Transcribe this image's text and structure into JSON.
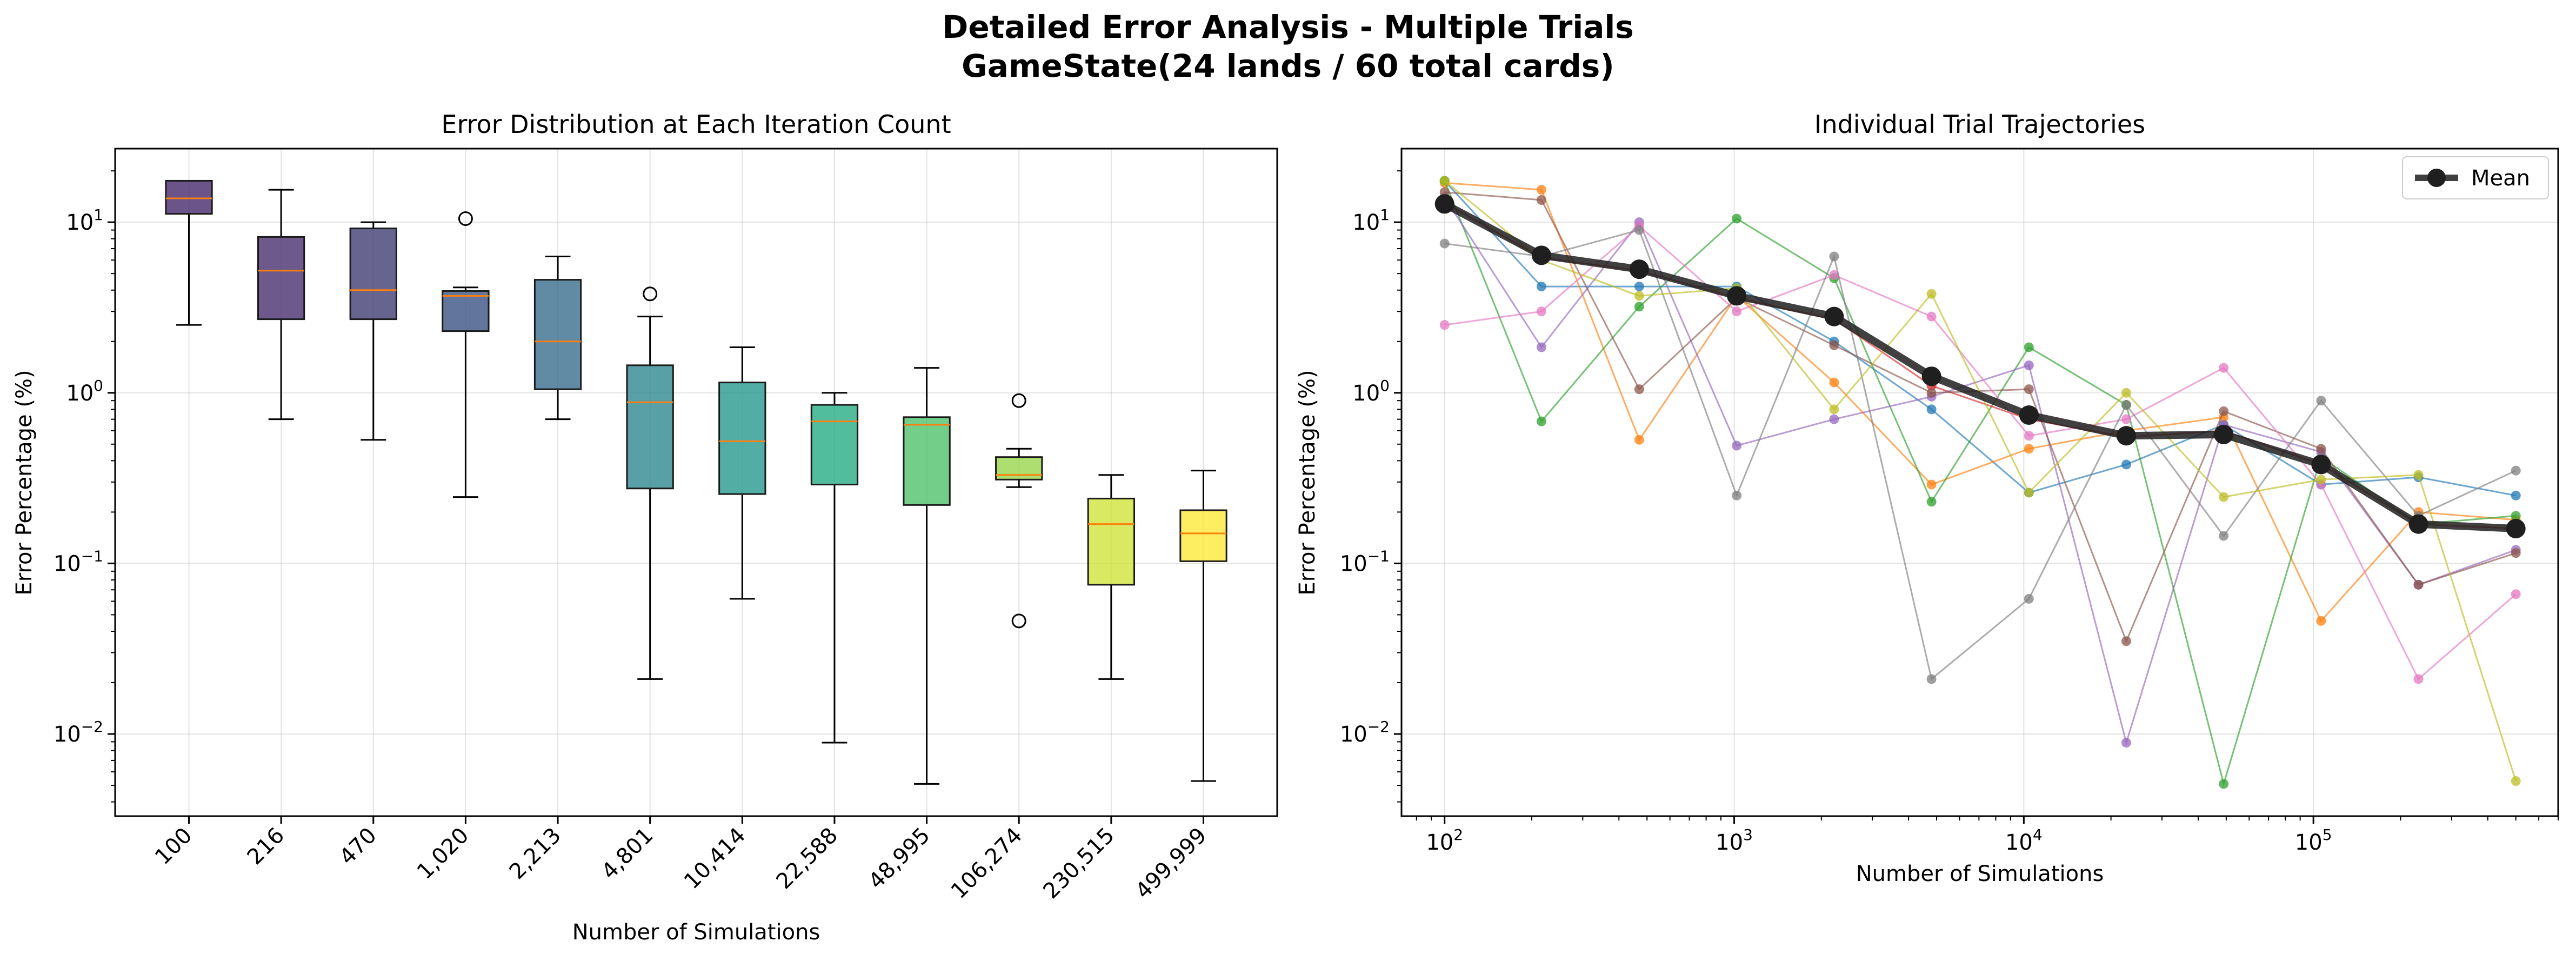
{
  "figure": {
    "title_line1": "Detailed Error Analysis - Multiple Trials",
    "title_line2": "GameState(24 lands / 60 total cards)"
  },
  "colors": {
    "mean": "#1f1f1f",
    "median": "#ff7f0e",
    "box_fills": [
      "#46296d",
      "#482f6f",
      "#413d73",
      "#3a5385",
      "#396d8e",
      "#2f8790",
      "#27988f",
      "#27ad83",
      "#4fc26a",
      "#98d64b",
      "#cfe33b",
      "#fde93a"
    ],
    "trial_colors": [
      "#1f77b4",
      "#ff7f0e",
      "#2ca02c",
      "#d62728",
      "#9467bd",
      "#8c564b",
      "#e377c2",
      "#7f7f7f",
      "#bcbd22",
      "#17becf"
    ]
  },
  "chart_data": [
    {
      "type": "box",
      "title": "Error Distribution at Each Iteration Count",
      "xlabel": "Number of Simulations",
      "ylabel": "Error Percentage (%)",
      "yscale": "log",
      "ylim": [
        0.0033,
        27
      ],
      "y_ticks": [
        {
          "value": 0.01,
          "base": "10",
          "exp": "−2"
        },
        {
          "value": 0.1,
          "base": "10",
          "exp": "−1"
        },
        {
          "value": 1,
          "base": "10",
          "exp": "0"
        },
        {
          "value": 10,
          "base": "10",
          "exp": "1"
        }
      ],
      "grid": true,
      "categories": [
        "100",
        "216",
        "470",
        "1,020",
        "2,213",
        "4,801",
        "10,414",
        "22,588",
        "48,995",
        "106,274",
        "230,515",
        "499,999"
      ],
      "boxes": [
        {
          "whisker_low": 2.5,
          "q1": 11.2,
          "median": 13.8,
          "q3": 17.5,
          "whisker_high": 17.5,
          "outliers": []
        },
        {
          "whisker_low": 0.7,
          "q1": 2.7,
          "median": 5.2,
          "q3": 8.2,
          "whisker_high": 15.5,
          "outliers": []
        },
        {
          "whisker_low": 0.53,
          "q1": 2.7,
          "median": 4.0,
          "q3": 9.2,
          "whisker_high": 10.0,
          "outliers": []
        },
        {
          "whisker_low": 0.245,
          "q1": 2.3,
          "median": 3.7,
          "q3": 3.95,
          "whisker_high": 4.15,
          "outliers": [
            10.5
          ]
        },
        {
          "whisker_low": 0.7,
          "q1": 1.05,
          "median": 2.0,
          "q3": 4.6,
          "whisker_high": 6.3,
          "outliers": []
        },
        {
          "whisker_low": 0.021,
          "q1": 0.275,
          "median": 0.88,
          "q3": 1.45,
          "whisker_high": 2.8,
          "outliers": [
            3.8
          ]
        },
        {
          "whisker_low": 0.062,
          "q1": 0.255,
          "median": 0.52,
          "q3": 1.15,
          "whisker_high": 1.85,
          "outliers": []
        },
        {
          "whisker_low": 0.0089,
          "q1": 0.29,
          "median": 0.68,
          "q3": 0.85,
          "whisker_high": 1.0,
          "outliers": []
        },
        {
          "whisker_low": 0.0051,
          "q1": 0.22,
          "median": 0.65,
          "q3": 0.72,
          "whisker_high": 1.4,
          "outliers": []
        },
        {
          "whisker_low": 0.28,
          "q1": 0.31,
          "median": 0.33,
          "q3": 0.42,
          "whisker_high": 0.47,
          "outliers": [
            0.9,
            0.046
          ]
        },
        {
          "whisker_low": 0.021,
          "q1": 0.075,
          "median": 0.17,
          "q3": 0.24,
          "whisker_high": 0.33,
          "outliers": []
        },
        {
          "whisker_low": 0.0053,
          "q1": 0.103,
          "median": 0.15,
          "q3": 0.205,
          "whisker_high": 0.35,
          "outliers": []
        }
      ]
    },
    {
      "type": "line",
      "title": "Individual Trial Trajectories",
      "xlabel": "Number of Simulations",
      "ylabel": "Error Percentage (%)",
      "xscale": "log",
      "yscale": "log",
      "xlim": [
        71,
        700000
      ],
      "ylim": [
        0.0033,
        27
      ],
      "x_ticks": [
        {
          "value": 100,
          "base": "10",
          "exp": "2"
        },
        {
          "value": 1000,
          "base": "10",
          "exp": "3"
        },
        {
          "value": 10000,
          "base": "10",
          "exp": "4"
        },
        {
          "value": 100000,
          "base": "10",
          "exp": "5"
        }
      ],
      "y_ticks": [
        {
          "value": 0.01,
          "base": "10",
          "exp": "−2"
        },
        {
          "value": 0.1,
          "base": "10",
          "exp": "−1"
        },
        {
          "value": 1,
          "base": "10",
          "exp": "0"
        },
        {
          "value": 10,
          "base": "10",
          "exp": "1"
        }
      ],
      "grid": true,
      "legend": {
        "position": "top-right",
        "label": "Mean"
      },
      "x": [
        100,
        216,
        470,
        1020,
        2213,
        4801,
        10414,
        22588,
        48995,
        106274,
        230515,
        499999
      ],
      "trials": [
        {
          "values": [
            17.5,
            4.2,
            4.2,
            4.2,
            2.0,
            0.8,
            0.26,
            0.38,
            0.65,
            0.29,
            0.32,
            0.25
          ]
        },
        {
          "values": [
            17.0,
            15.5,
            0.53,
            3.7,
            1.15,
            0.29,
            0.47,
            0.6,
            0.72,
            0.046,
            0.2,
            0.18
          ]
        },
        {
          "values": [
            17.5,
            0.68,
            3.2,
            10.5,
            4.7,
            0.23,
            1.85,
            0.85,
            0.0051,
            0.42,
            0.17,
            0.19
          ]
        },
        {
          "values": [
            13.0,
            6.2,
            5.2,
            3.6,
            2.7,
            1.1,
            0.7,
            0.55,
            0.6,
            0.38,
            0.17,
            0.16
          ]
        },
        {
          "values": [
            14.0,
            1.85,
            10.0,
            0.49,
            0.7,
            0.95,
            1.45,
            0.0089,
            0.65,
            0.45,
            0.075,
            0.12
          ]
        },
        {
          "values": [
            15.0,
            13.5,
            1.05,
            3.6,
            1.9,
            1.0,
            1.05,
            0.035,
            0.78,
            0.47,
            0.075,
            0.115
          ]
        },
        {
          "values": [
            2.5,
            3.0,
            9.5,
            3.0,
            4.9,
            2.8,
            0.56,
            0.7,
            1.4,
            0.29,
            0.021,
            0.066
          ]
        },
        {
          "values": [
            7.5,
            6.3,
            9.0,
            0.25,
            6.3,
            0.021,
            0.062,
            0.85,
            0.145,
            0.9,
            0.19,
            0.35
          ]
        },
        {
          "values": [
            17.5,
            6.0,
            3.7,
            4.1,
            0.8,
            3.8,
            0.26,
            1.0,
            0.245,
            0.31,
            0.33,
            0.0053
          ]
        }
      ],
      "mean": {
        "name": "Mean",
        "values": [
          12.8,
          6.4,
          5.3,
          3.7,
          2.8,
          1.25,
          0.74,
          0.56,
          0.57,
          0.38,
          0.17,
          0.16
        ]
      }
    }
  ]
}
